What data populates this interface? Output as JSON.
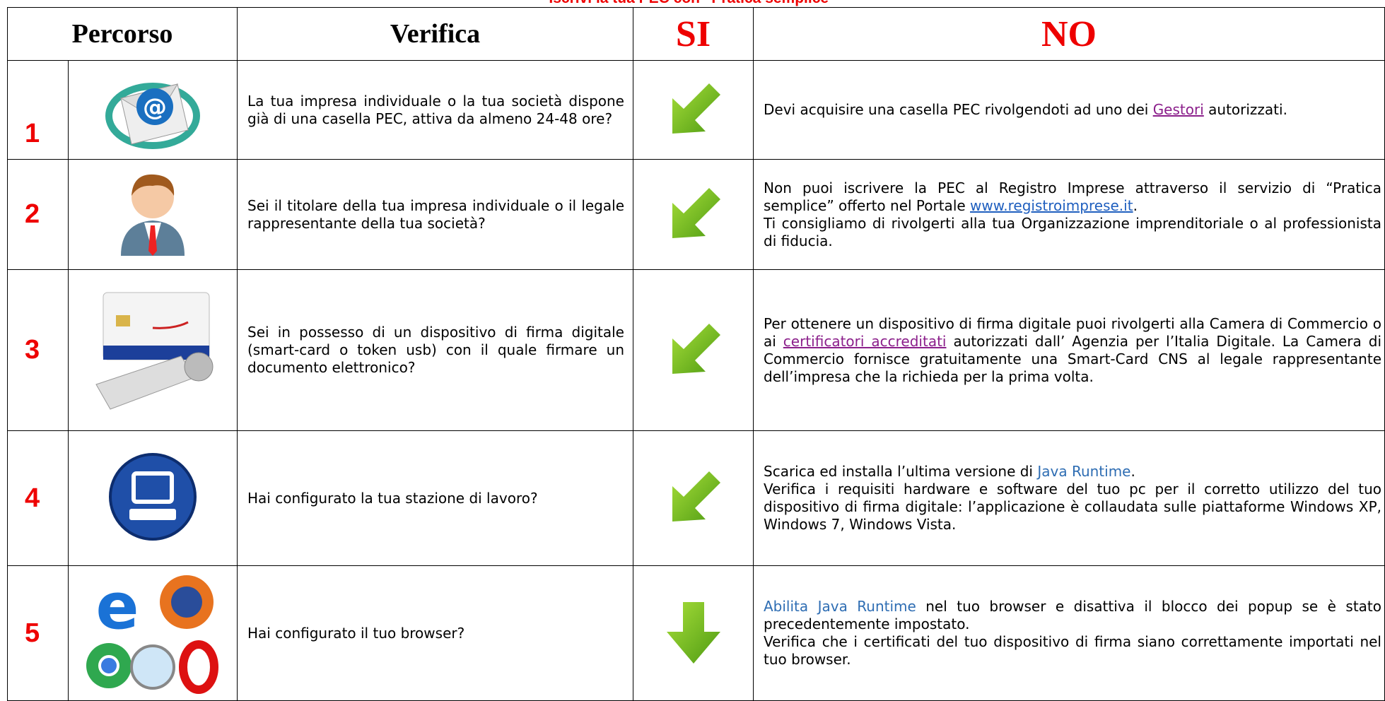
{
  "title": "Iscrivi la tua PEC con “Pratica semplice”",
  "header": {
    "percorso": "Percorso",
    "verifica": "Verifica",
    "si": "SI",
    "no": "NO"
  },
  "rows": [
    {
      "number": "1",
      "question": "La tua impresa individuale o la tua società dispone già di una casella PEC, attiva da almeno 24-48 ore?",
      "no": [
        [
          "Devi acquisire una casella PEC rivolgendoti ad uno dei ",
          {
            "text": "Gestori",
            "kind": "visited"
          },
          " autorizzati."
        ]
      ]
    },
    {
      "number": "2",
      "question": "Sei il titolare della tua impresa individuale o il legale rappresentante della tua società?",
      "no": [
        [
          "Non puoi iscrivere la PEC al Registro Imprese attraverso il servizio di “Pratica semplice” offerto nel Portale ",
          {
            "text": "www.registroimprese.it",
            "kind": "link"
          },
          "."
        ],
        [
          "Ti consigliamo di rivolgerti alla tua Organizzazione imprenditoriale o al professionista di fiducia."
        ]
      ]
    },
    {
      "number": "3",
      "question": "Sei in possesso di un dispositivo di firma digitale (smart-card o token usb) con il quale firmare un documento elettronico?",
      "no": [
        [
          "Per ottenere un dispositivo di firma digitale puoi rivolgerti alla Camera di Commercio o ai ",
          {
            "text": "certificatori accreditati",
            "kind": "visited"
          },
          " autorizzati dall’ Agenzia per l’Italia Digitale. La Camera di Commercio fornisce gratuitamente una Smart-Card CNS al legale rappresentante dell’impresa che la richieda per la prima volta."
        ]
      ]
    },
    {
      "number": "4",
      "question": "Hai configurato la tua stazione di lavoro?",
      "no": [
        [
          "Scarica ed installa l’ultima versione di ",
          {
            "text": "Java Runtime",
            "kind": "plain"
          },
          "."
        ],
        [
          "Verifica i requisiti hardware e software del tuo pc per il corretto utilizzo del tuo dispositivo di firma digitale: l’applicazione è collaudata sulle piattaforme Windows XP, Windows 7, Windows Vista."
        ]
      ]
    },
    {
      "number": "5",
      "question": "Hai configurato il tuo browser?",
      "no": [
        [
          {
            "text": "Abilita Java Runtime",
            "kind": "plain"
          },
          " nel tuo browser e disattiva il blocco dei popup se è stato precedentemente impostato."
        ],
        [
          "Verifica che i certificati del tuo dispositivo di firma siano correttamente importati nel tuo browser."
        ]
      ]
    }
  ]
}
